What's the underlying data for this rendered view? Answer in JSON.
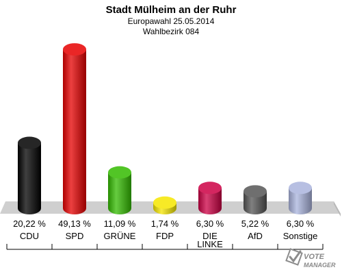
{
  "chart_data": {
    "type": "bar",
    "title": "Stadt Mülheim an der Ruhr",
    "subtitle_lines": [
      "Europawahl 25.05.2014",
      "Wahlbezirk 084"
    ],
    "unit": "%",
    "categories": [
      "CDU",
      "SPD",
      "GRÜNE",
      "FDP",
      "DIE LINKE",
      "AfD",
      "Sonstige"
    ],
    "category_lines": [
      [
        "CDU"
      ],
      [
        "SPD"
      ],
      [
        "GRÜNE"
      ],
      [
        "FDP"
      ],
      [
        "DIE",
        "LINKE"
      ],
      [
        "AfD"
      ],
      [
        "Sonstige"
      ]
    ],
    "values": [
      20.22,
      49.13,
      11.09,
      1.74,
      6.3,
      5.22,
      6.3
    ],
    "value_labels": [
      "20,22 %",
      "49,13 %",
      "11,09 %",
      "1,74 %",
      "6,30 %",
      "5,22 %",
      "6,30 %"
    ],
    "colors": [
      "#000000",
      "#e60000",
      "#33bb00",
      "#f5e600",
      "#cc0044",
      "#555555",
      "#aab4dd"
    ],
    "ylim": [
      0,
      50
    ],
    "grid": false
  },
  "watermark": {
    "text_lines": [
      "VOTE",
      "MANAGER"
    ]
  }
}
